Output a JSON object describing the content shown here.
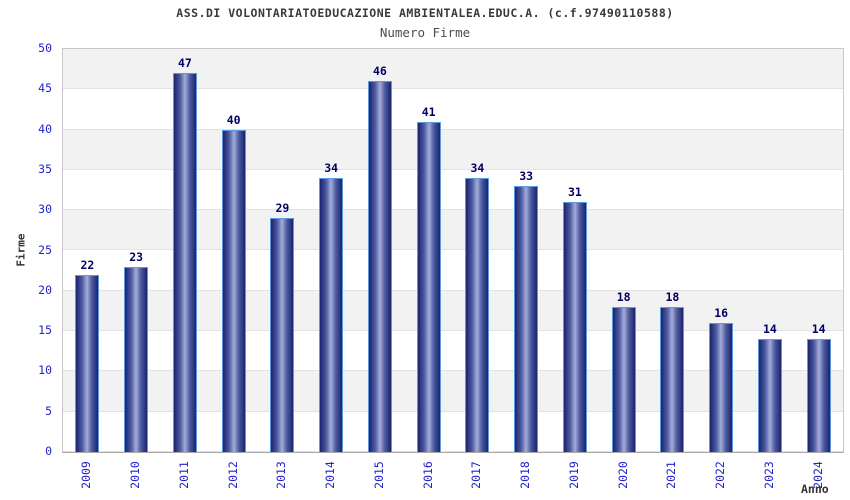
{
  "header": {
    "title": "ASS.DI VOLONTARIATOEDUCAZIONE AMBIENTALEA.EDUC.A. (c.f.97490110588)",
    "subtitle": "Numero Firme"
  },
  "chart_data": {
    "type": "bar",
    "title": "ASS.DI VOLONTARIATOEDUCAZIONE AMBIENTALEA.EDUC.A. (c.f.97490110588)",
    "subtitle": "Numero Firme",
    "categories": [
      "2009",
      "2010",
      "2011",
      "2012",
      "2013",
      "2014",
      "2015",
      "2016",
      "2017",
      "2018",
      "2019",
      "2020",
      "2021",
      "2022",
      "2023",
      "2024"
    ],
    "values": [
      22,
      23,
      47,
      40,
      29,
      34,
      46,
      41,
      34,
      33,
      31,
      18,
      18,
      16,
      14,
      14
    ],
    "xlabel": "Anno",
    "ylabel": "Firme",
    "ylim": [
      0,
      50
    ],
    "yticks": [
      0,
      5,
      10,
      15,
      20,
      25,
      30,
      35,
      40,
      45,
      50
    ],
    "grid": "horizontal-alternating-bands",
    "legend_position": "none",
    "bar_value_labels_shown": true
  },
  "colors": {
    "title_text": "#3a3a3a",
    "subtitle_text": "#4d4d4d",
    "axis_tick_label": "#2222cc",
    "value_label": "#000066",
    "axis_title_text": "#333333",
    "bar_border": "#5b9ae0",
    "bar_dark": "#1a2470",
    "bar_mid": "#4d5aa0",
    "bar_light": "#a4add8",
    "band_gray": "#f2f2f2",
    "band_white": "#ffffff"
  }
}
